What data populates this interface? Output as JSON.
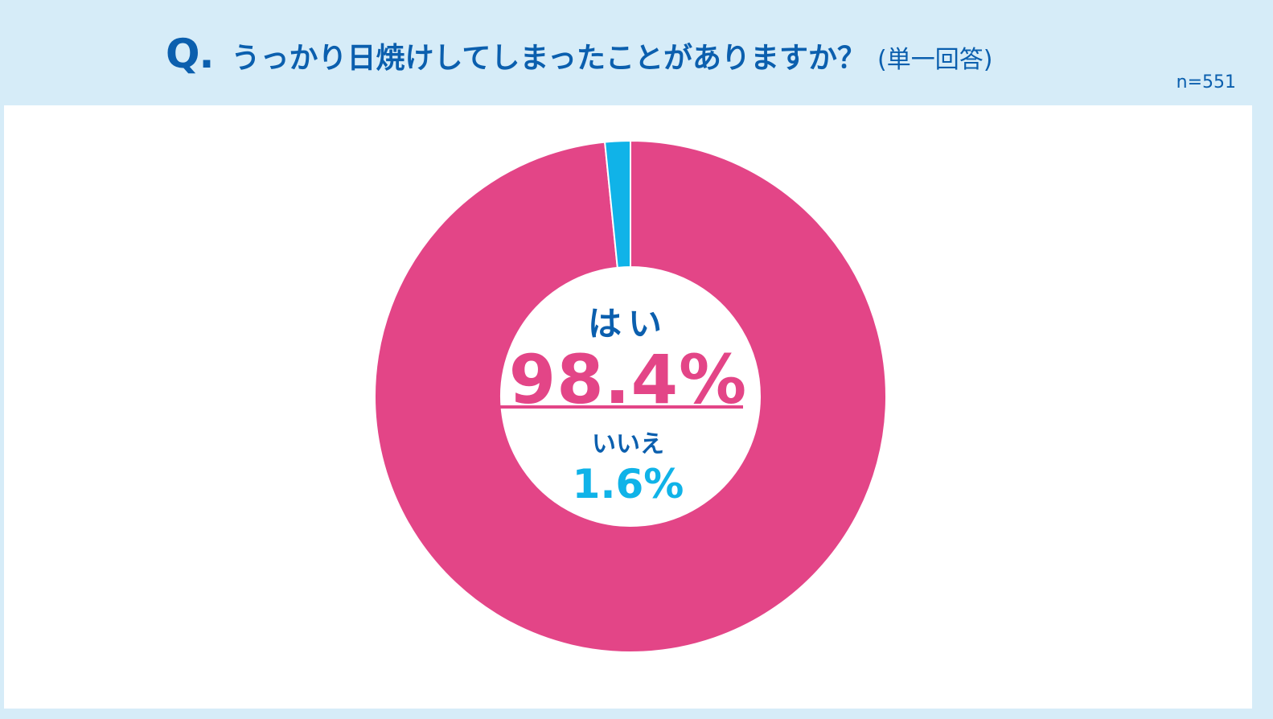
{
  "header": {
    "q_mark": "Q.",
    "question": "うっかり日焼けしてしまったことがありますか？",
    "note": "(単一回答)",
    "sample_size": "n=551"
  },
  "center": {
    "yes_label": "はい",
    "yes_value": "98.4%",
    "no_label": "いいえ",
    "no_value": "1.6%"
  },
  "chart_data": {
    "type": "pie",
    "donut": true,
    "categories": [
      "はい",
      "いいえ"
    ],
    "values": [
      98.4,
      1.6
    ],
    "colors": [
      "#e34587",
      "#10b3e8"
    ],
    "start_angle": "top",
    "direction": "clockwise"
  }
}
